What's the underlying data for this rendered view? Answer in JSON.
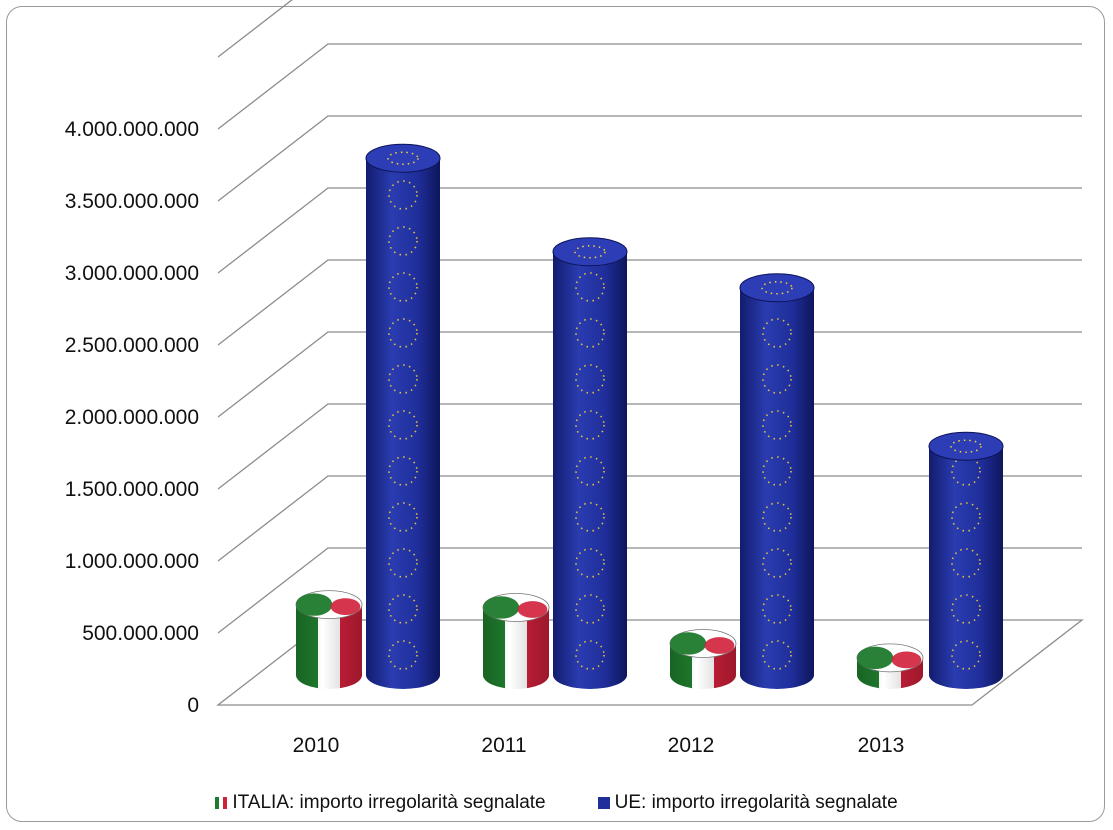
{
  "chart_data": {
    "type": "bar",
    "categories": [
      "2010",
      "2011",
      "2012",
      "2013"
    ],
    "series": [
      {
        "name": "ITALIA: importo irregolarità segnalate",
        "values": [
          600000000,
          580000000,
          330000000,
          230000000
        ]
      },
      {
        "name": "UE: importo irregolarità segnalate",
        "values": [
          3700000000,
          3050000000,
          2800000000,
          1700000000
        ]
      }
    ],
    "ylim": [
      0,
      4500000000
    ],
    "yticks": [
      0,
      500000000,
      1000000000,
      1500000000,
      2000000000,
      2500000000,
      3000000000,
      3500000000,
      4000000000
    ],
    "ytick_labels": [
      "0",
      "500.000.000",
      "1.000.000.000",
      "1.500.000.000",
      "2.000.000.000",
      "2.500.000.000",
      "3.000.000.000",
      "3.500.000.000",
      "4.000.000.000"
    ],
    "grid": true,
    "legend_position": "bottom",
    "three_d": true,
    "title": "",
    "xlabel": "",
    "ylabel": "",
    "colors": {
      "italia_green": "#1e7a2c",
      "italia_white": "#ffffff",
      "italia_red": "#d0203a",
      "ue_blue": "#1f2e9a",
      "ue_star": "#f4d23a",
      "grid": "#8c8c8c"
    }
  },
  "legend": {
    "italia_label": "ITALIA: importo irregolarità segnalate",
    "ue_label": "UE: importo irregolarità segnalate"
  }
}
